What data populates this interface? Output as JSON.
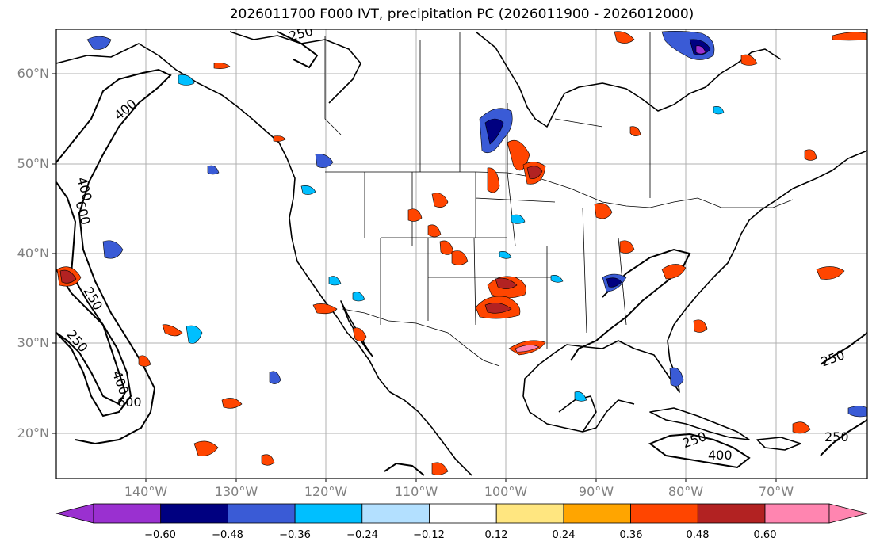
{
  "title": "2026011700 F000 IVT, precipitation PC (2026011900 - 2026012000)",
  "lat_labels": [
    "60°N",
    "50°N",
    "40°N",
    "30°N",
    "20°N"
  ],
  "lon_labels": [
    "140°W",
    "130°W",
    "120°W",
    "110°W",
    "100°W",
    "90°W",
    "80°W",
    "70°W"
  ],
  "ivt_contour_labels": [
    "400",
    "250",
    "400",
    "600",
    "250",
    "250",
    "400",
    "600",
    "250",
    "250",
    "400",
    "250"
  ],
  "colorbar": {
    "labels": [
      "−0.60",
      "−0.48",
      "−0.36",
      "−0.24",
      "−0.12",
      "0.12",
      "0.24",
      "0.36",
      "0.48",
      "0.60"
    ],
    "colors": [
      "#9a30d0",
      "#000080",
      "#3a5bd6",
      "#00bfff",
      "#b3e0ff",
      "#ffffff",
      "#ffe680",
      "#ffa500",
      "#ff4500",
      "#b22222",
      "#ff85b0"
    ]
  },
  "colors": {
    "contour": "#000000",
    "grid": "#b0b0b0",
    "border": "#000000"
  }
}
